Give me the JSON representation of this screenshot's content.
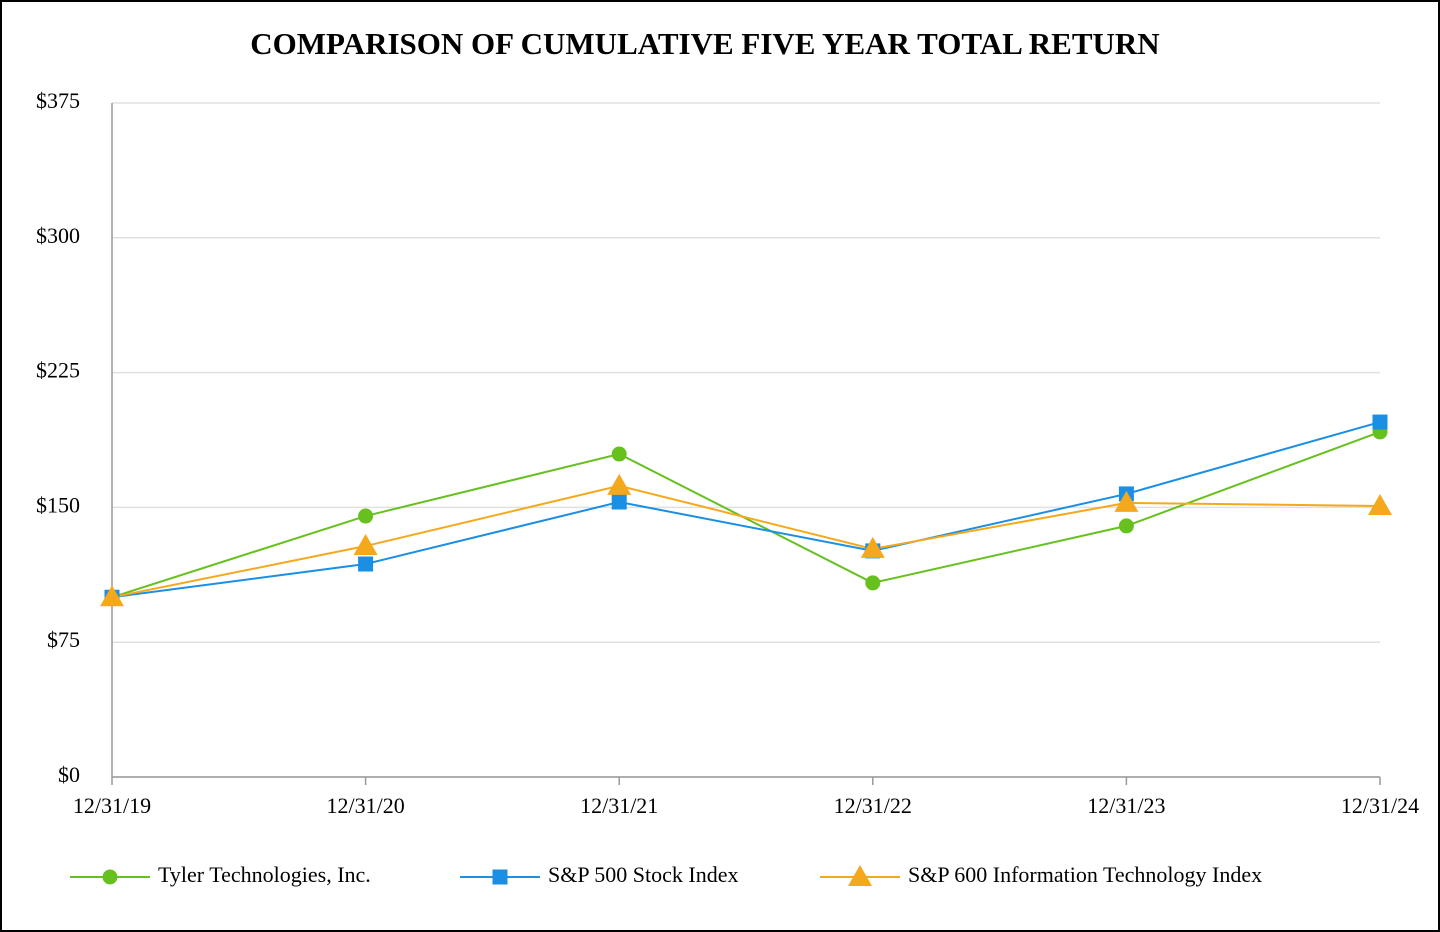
{
  "chart_data": {
    "type": "line",
    "title": "COMPARISON OF CUMULATIVE FIVE YEAR TOTAL RETURN",
    "categories": [
      "12/31/19",
      "12/31/20",
      "12/31/21",
      "12/31/22",
      "12/31/23",
      "12/31/24"
    ],
    "series": [
      {
        "name": "Tyler Technologies, Inc.",
        "color": "#66c01e",
        "marker": "circle",
        "values": [
          100,
          145.2,
          179.7,
          108,
          139.7,
          192
        ]
      },
      {
        "name": "S&P 500 Stock Index",
        "color": "#1a8fe3",
        "marker": "square",
        "values": [
          100,
          118.5,
          153,
          125.8,
          157.5,
          197.5
        ]
      },
      {
        "name": "S&P 600 Information Technology Index",
        "color": "#f5a81c",
        "marker": "triangle",
        "values": [
          100,
          128.5,
          162,
          126.9,
          152.5,
          150.8
        ]
      }
    ],
    "ylim": [
      0,
      375
    ],
    "yticks": [
      {
        "value": 0,
        "label": "$0"
      },
      {
        "value": 75,
        "label": "$75"
      },
      {
        "value": 150,
        "label": "$150"
      },
      {
        "value": 225,
        "label": "$225"
      },
      {
        "value": 300,
        "label": "$300"
      },
      {
        "value": 375,
        "label": "$375"
      }
    ],
    "grid": true,
    "legend": "bottom"
  }
}
